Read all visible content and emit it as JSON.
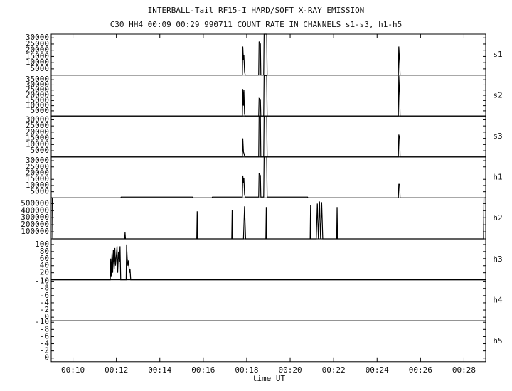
{
  "title": "INTERBALL-Tail RF15-I HARD/SOFT X-RAY EMISSION",
  "subtitle": "C30 HH4 00:09 00:29 990711  COUNT RATE IN CHANNELS s1-s3, h1-h5",
  "xlabel": "time UT",
  "xlim": [
    9,
    29
  ],
  "xticks": [
    {
      "value": 10,
      "label": "00:10"
    },
    {
      "value": 12,
      "label": "00:12"
    },
    {
      "value": 14,
      "label": "00:14"
    },
    {
      "value": 16,
      "label": "00:16"
    },
    {
      "value": 18,
      "label": "00:18"
    },
    {
      "value": 20,
      "label": "00:20"
    },
    {
      "value": 22,
      "label": "00:22"
    },
    {
      "value": 24,
      "label": "00:24"
    },
    {
      "value": 26,
      "label": "00:26"
    },
    {
      "value": 28,
      "label": "00:28"
    }
  ],
  "chart_data": [
    {
      "type": "line",
      "label": "s1",
      "color": "#000000",
      "ylim": [
        0,
        33000
      ],
      "yticks": [
        5000,
        10000,
        15000,
        20000,
        25000,
        30000
      ],
      "x": [
        9,
        17.8,
        17.82,
        17.85,
        17.87,
        17.9,
        17.93,
        18.55,
        18.57,
        18.63,
        18.65,
        18.78,
        18.8,
        18.92,
        18.94,
        24.98,
        25.0,
        25.04,
        25.06,
        29
      ],
      "values": [
        0,
        0,
        23000,
        12000,
        16000,
        3000,
        0,
        0,
        27000,
        25000,
        0,
        0,
        33000,
        33000,
        0,
        0,
        23000,
        10000,
        0,
        0
      ]
    },
    {
      "type": "line",
      "label": "s2",
      "color": "#000000",
      "ylim": [
        0,
        39500
      ],
      "yticks": [
        5000,
        10000,
        15000,
        20000,
        25000,
        30000,
        35000
      ],
      "x": [
        9,
        17.8,
        17.82,
        17.85,
        17.87,
        17.9,
        17.93,
        18.55,
        18.57,
        18.63,
        18.65,
        18.78,
        18.8,
        18.92,
        18.94,
        24.98,
        25.0,
        25.04,
        25.06,
        29
      ],
      "values": [
        0,
        0,
        26000,
        10000,
        25000,
        2000,
        0,
        0,
        17000,
        16000,
        0,
        0,
        39000,
        39000,
        0,
        0,
        39000,
        20000,
        0,
        0
      ]
    },
    {
      "type": "line",
      "label": "s3",
      "color": "#000000",
      "ylim": [
        0,
        33000
      ],
      "yticks": [
        5000,
        10000,
        15000,
        20000,
        25000,
        30000
      ],
      "x": [
        9,
        17.8,
        17.82,
        17.85,
        17.87,
        17.9,
        17.93,
        18.55,
        18.57,
        18.63,
        18.65,
        18.78,
        18.8,
        18.92,
        18.94,
        24.98,
        25.0,
        25.04,
        25.06,
        29
      ],
      "values": [
        0,
        0,
        15000,
        4000,
        3000,
        1000,
        0,
        0,
        33000,
        33000,
        0,
        0,
        33000,
        33000,
        0,
        0,
        18000,
        15000,
        0,
        0
      ]
    },
    {
      "type": "line",
      "label": "h1",
      "color": "#000000",
      "ylim": [
        0,
        33000
      ],
      "yticks": [
        5000,
        10000,
        15000,
        20000,
        25000,
        30000
      ],
      "x": [
        9,
        12.2,
        12.22,
        15.5,
        15.52,
        16.4,
        16.42,
        17.8,
        17.82,
        17.85,
        17.87,
        17.9,
        17.93,
        18.55,
        18.57,
        18.63,
        18.65,
        18.78,
        18.8,
        18.92,
        18.94,
        20.8,
        20.82,
        24.98,
        25.0,
        25.04,
        25.06,
        29
      ],
      "values": [
        0,
        0,
        700,
        700,
        0,
        0,
        700,
        700,
        18000,
        12000,
        16000,
        3000,
        700,
        700,
        20000,
        18000,
        700,
        700,
        33000,
        33000,
        700,
        700,
        0,
        0,
        11000,
        11000,
        0,
        0
      ]
    },
    {
      "type": "line",
      "label": "h2",
      "color": "#000000",
      "ylim": [
        0,
        580000
      ],
      "yticks": [
        100000,
        200000,
        300000,
        400000,
        500000
      ],
      "x": [
        9,
        9.05,
        9.07,
        12.38,
        12.4,
        12.42,
        15.7,
        15.72,
        15.74,
        17.31,
        17.33,
        17.35,
        17.85,
        17.9,
        17.95,
        18.88,
        18.9,
        18.92,
        20.92,
        20.94,
        20.96,
        21.2,
        21.25,
        21.3,
        21.35,
        21.4,
        21.45,
        21.5,
        22.14,
        22.16,
        22.18,
        28.9,
        28.92,
        29
      ],
      "values": [
        580000,
        580000,
        0,
        0,
        90000,
        0,
        0,
        390000,
        0,
        0,
        410000,
        0,
        0,
        460000,
        0,
        0,
        450000,
        0,
        0,
        480000,
        0,
        0,
        500000,
        0,
        530000,
        0,
        520000,
        0,
        0,
        450000,
        0,
        0,
        580000,
        580000
      ]
    },
    {
      "type": "line",
      "label": "h3",
      "color": "#000000",
      "ylim": [
        0,
        116
      ],
      "yticks": [
        20,
        40,
        60,
        80,
        100
      ],
      "x": [
        9,
        11.72,
        11.74,
        11.76,
        11.8,
        11.83,
        11.86,
        11.9,
        11.93,
        11.96,
        12.0,
        12.03,
        12.06,
        12.1,
        12.14,
        12.17,
        12.2,
        12.45,
        12.47,
        12.5,
        12.53,
        12.56,
        12.6,
        12.63,
        12.66,
        29
      ],
      "values": [
        0,
        0,
        60,
        10,
        75,
        20,
        85,
        30,
        90,
        40,
        70,
        95,
        20,
        80,
        50,
        95,
        0,
        0,
        100,
        60,
        40,
        55,
        20,
        30,
        0,
        0
      ]
    },
    {
      "type": "line",
      "label": "h4",
      "color": "#000000",
      "ylim": [
        1,
        -10.4
      ],
      "yticks": [
        -10,
        -8,
        -6,
        -4,
        -2,
        0
      ],
      "x": [],
      "values": []
    },
    {
      "type": "line",
      "label": "h5",
      "color": "#000000",
      "ylim": [
        1,
        -10.4
      ],
      "yticks": [
        -10,
        -8,
        -6,
        -4,
        -2,
        0
      ],
      "x": [],
      "values": []
    }
  ]
}
